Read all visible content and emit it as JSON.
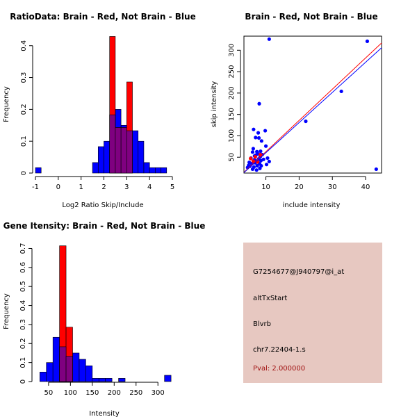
{
  "colors": {
    "brain": "#ff0000",
    "not_brain": "#0000ff",
    "overlap": "#7f0080",
    "panel_bg": "#e7c8c1",
    "pval_text": "#a01010"
  },
  "chart_data": [
    {
      "id": "ratio",
      "type": "histogram",
      "title": "RatioData: Brain - Red, Not Brain - Blue",
      "xlabel": "Log2 Ratio Skip/Include",
      "ylabel": "Frequency",
      "xlim": [
        -1,
        5
      ],
      "ylim": [
        0,
        0.43
      ],
      "bin_width": 0.25,
      "xticks": [
        -1,
        0,
        1,
        2,
        3,
        4,
        5
      ],
      "yticks": [
        0,
        0.1,
        0.2,
        0.3,
        0.4
      ],
      "series": [
        {
          "name": "Not Brain",
          "color": "blue",
          "bins": [
            {
              "x0": -1.0,
              "x1": -0.75,
              "y": 0.017
            },
            {
              "x0": 1.5,
              "x1": 1.75,
              "y": 0.033
            },
            {
              "x0": 1.75,
              "x1": 2.0,
              "y": 0.083
            },
            {
              "x0": 2.0,
              "x1": 2.25,
              "y": 0.1
            },
            {
              "x0": 2.25,
              "x1": 2.5,
              "y": 0.183
            },
            {
              "x0": 2.5,
              "x1": 2.75,
              "y": 0.2
            },
            {
              "x0": 2.75,
              "x1": 3.0,
              "y": 0.15
            },
            {
              "x0": 3.0,
              "x1": 3.25,
              "y": 0.133
            },
            {
              "x0": 3.25,
              "x1": 3.5,
              "y": 0.133
            },
            {
              "x0": 3.5,
              "x1": 3.75,
              "y": 0.1
            },
            {
              "x0": 3.75,
              "x1": 4.0,
              "y": 0.033
            },
            {
              "x0": 4.0,
              "x1": 4.25,
              "y": 0.017
            },
            {
              "x0": 4.25,
              "x1": 4.5,
              "y": 0.017
            },
            {
              "x0": 4.5,
              "x1": 4.75,
              "y": 0.017
            }
          ]
        },
        {
          "name": "Brain",
          "color": "red",
          "bins": [
            {
              "x0": 2.25,
              "x1": 2.5,
              "y": 0.429
            },
            {
              "x0": 2.5,
              "x1": 2.75,
              "y": 0.143
            },
            {
              "x0": 2.75,
              "x1": 3.0,
              "y": 0.143
            },
            {
              "x0": 3.0,
              "x1": 3.25,
              "y": 0.286
            }
          ]
        }
      ]
    },
    {
      "id": "scatter",
      "type": "scatter",
      "title": "Brain - Red, Not Brain - Blue",
      "xlabel": "include intensity",
      "ylabel": "skip intensity",
      "xlim": [
        3.4,
        44.8
      ],
      "ylim": [
        13,
        333
      ],
      "xticks": [
        10,
        20,
        30,
        40
      ],
      "yticks": [
        50,
        100,
        150,
        200,
        250,
        300
      ],
      "series": [
        {
          "name": "Not Brain",
          "color": "blue",
          "points": [
            [
              4.5,
              26
            ],
            [
              4.8,
              31
            ],
            [
              5.0,
              38
            ],
            [
              5.2,
              29
            ],
            [
              5.5,
              48
            ],
            [
              5.8,
              35
            ],
            [
              6.0,
              62
            ],
            [
              6.0,
              22
            ],
            [
              6.2,
              70
            ],
            [
              6.3,
              115
            ],
            [
              6.4,
              27
            ],
            [
              6.5,
              44
            ],
            [
              6.6,
              53
            ],
            [
              6.8,
              37
            ],
            [
              6.9,
              96
            ],
            [
              7.0,
              55
            ],
            [
              7.1,
              41
            ],
            [
              7.2,
              20
            ],
            [
              7.3,
              63
            ],
            [
              7.4,
              30
            ],
            [
              7.6,
              58
            ],
            [
              7.7,
              107
            ],
            [
              7.8,
              46
            ],
            [
              7.9,
              95
            ],
            [
              8.0,
              175
            ],
            [
              8.1,
              35
            ],
            [
              8.2,
              24
            ],
            [
              8.3,
              51
            ],
            [
              8.4,
              64
            ],
            [
              8.5,
              42
            ],
            [
              8.6,
              30
            ],
            [
              8.7,
              88
            ],
            [
              8.9,
              56
            ],
            [
              9.3,
              45
            ],
            [
              9.8,
              112
            ],
            [
              10.0,
              76
            ],
            [
              10.2,
              33
            ],
            [
              10.5,
              48
            ],
            [
              11.0,
              40
            ],
            [
              11.0,
              326
            ],
            [
              22.0,
              134
            ],
            [
              32.7,
              204
            ],
            [
              40.5,
              321
            ],
            [
              43.2,
              22
            ]
          ]
        },
        {
          "name": "Brain",
          "color": "red",
          "points": [
            [
              5.4,
              47
            ],
            [
              6.2,
              41
            ],
            [
              6.8,
              51
            ],
            [
              7.5,
              39
            ],
            [
              8.3,
              56
            ]
          ]
        }
      ],
      "fit_lines": [
        {
          "name": "Brain fit",
          "color": "red",
          "intercept": -10,
          "slope": 7.3
        },
        {
          "name": "Not Brain fit",
          "color": "blue",
          "intercept": -10,
          "slope": 7.05
        }
      ]
    },
    {
      "id": "intensity",
      "type": "histogram",
      "title": "Gene Itensity: Brain - Red, Not Brain - Blue",
      "xlabel": "Intensity",
      "ylabel": "Frequency",
      "xlim": [
        20,
        333
      ],
      "ylim": [
        0,
        0.72
      ],
      "bin_width": 15,
      "xticks": [
        50,
        100,
        150,
        200,
        250,
        300
      ],
      "yticks": [
        0,
        0.1,
        0.2,
        0.3,
        0.4,
        0.5,
        0.6,
        0.7
      ],
      "series": [
        {
          "name": "Not Brain",
          "color": "blue",
          "bins": [
            {
              "x0": 30,
              "x1": 45,
              "y": 0.05
            },
            {
              "x0": 45,
              "x1": 60,
              "y": 0.1
            },
            {
              "x0": 60,
              "x1": 75,
              "y": 0.233
            },
            {
              "x0": 75,
              "x1": 90,
              "y": 0.183
            },
            {
              "x0": 90,
              "x1": 105,
              "y": 0.133
            },
            {
              "x0": 105,
              "x1": 120,
              "y": 0.15
            },
            {
              "x0": 120,
              "x1": 135,
              "y": 0.117
            },
            {
              "x0": 135,
              "x1": 150,
              "y": 0.083
            },
            {
              "x0": 150,
              "x1": 165,
              "y": 0.017
            },
            {
              "x0": 165,
              "x1": 180,
              "y": 0.017
            },
            {
              "x0": 180,
              "x1": 195,
              "y": 0.017
            },
            {
              "x0": 210,
              "x1": 225,
              "y": 0.017
            },
            {
              "x0": 315,
              "x1": 330,
              "y": 0.033
            }
          ]
        },
        {
          "name": "Brain",
          "color": "red",
          "bins": [
            {
              "x0": 75,
              "x1": 90,
              "y": 0.714
            },
            {
              "x0": 90,
              "x1": 105,
              "y": 0.286
            }
          ]
        }
      ]
    }
  ],
  "info": {
    "probe_id": "G7254677@J940797@i_at",
    "event_type": "altTxStart",
    "gene": "Blvrb",
    "location": "chr7.22404-1.s",
    "pval": "Pval: 2.000000"
  }
}
